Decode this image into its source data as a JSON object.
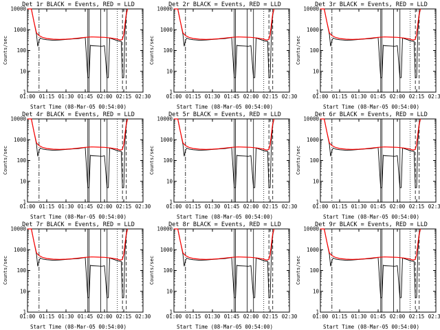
{
  "figure": {
    "x_axis_label": "Start Time (08-Mar-05 00:54:00)",
    "y_axis_label": "Counts/sec",
    "colors": {
      "events": "#000000",
      "lld": "#ff0000",
      "background": "#ffffff"
    }
  },
  "chart_data": [
    {
      "type": "line",
      "title": "Det 1r BLACK = Events, RED = LLD"
    },
    {
      "type": "line",
      "title": "Det 2r BLACK = Events, RED = LLD"
    },
    {
      "type": "line",
      "title": "Det 3r BLACK = Events, RED = LLD"
    },
    {
      "type": "line",
      "title": "Det 4r BLACK = Events, RED = LLD"
    },
    {
      "type": "line",
      "title": "Det 5r BLACK = Events, RED = LLD"
    },
    {
      "type": "line",
      "title": "Det 6r BLACK = Events, RED = LLD"
    },
    {
      "type": "line",
      "title": "Det 7r BLACK = Events, RED = LLD"
    },
    {
      "type": "line",
      "title": "Det 8r BLACK = Events, RED = LLD"
    },
    {
      "type": "line",
      "title": "Det 9r BLACK = Events, RED = LLD"
    }
  ],
  "shared": {
    "x_time_range": [
      "01:00",
      "02:30"
    ],
    "x_ticks": [
      "01:00",
      "01:15",
      "01:30",
      "01:45",
      "02:00",
      "02:15",
      "02:30"
    ],
    "y_scale": "log",
    "y_range": [
      1,
      10000
    ],
    "y_ticks": [
      "1",
      "10",
      "100",
      "1000",
      "10000"
    ],
    "series": [
      {
        "name": "Events",
        "color": "#000000",
        "x": [
          "01:00",
          "01:03",
          "01:05",
          "01:07",
          "01:08",
          "01:09",
          "01:10",
          "01:12",
          "01:15",
          "01:20",
          "01:25",
          "01:30",
          "01:35",
          "01:40",
          "01:45",
          "01:47",
          "01:48",
          "01:49",
          "01:50",
          "01:55",
          "01:58",
          "02:00",
          "02:02",
          "02:03",
          "02:04",
          "02:05",
          "02:08",
          "02:10",
          "02:12",
          "02:13",
          "02:14",
          "02:15",
          "02:16",
          "02:17",
          "02:18"
        ],
        "y": [
          10000,
          10000,
          2500,
          600,
          160,
          300,
          400,
          350,
          330,
          310,
          320,
          340,
          360,
          380,
          420,
          5,
          5,
          180,
          170,
          165,
          160,
          170,
          5,
          5,
          400,
          380,
          330,
          290,
          280,
          280,
          5,
          5,
          1000,
          5000,
          10000
        ]
      },
      {
        "name": "LLD",
        "color": "#ff0000",
        "x": [
          "01:00",
          "01:03",
          "01:05",
          "01:07",
          "01:09",
          "01:12",
          "01:15",
          "01:20",
          "01:25",
          "01:30",
          "01:35",
          "01:40",
          "01:45",
          "01:50",
          "01:55",
          "02:00",
          "02:05",
          "02:10",
          "02:12",
          "02:14",
          "02:15",
          "02:16",
          "02:17",
          "02:18"
        ],
        "y": [
          10000,
          10000,
          2500,
          700,
          520,
          420,
          380,
          350,
          340,
          350,
          370,
          400,
          430,
          450,
          440,
          430,
          400,
          350,
          320,
          340,
          600,
          2000,
          6000,
          10000
        ]
      }
    ],
    "vertical_markers": [
      {
        "time": "01:09",
        "style": "dash-dot"
      },
      {
        "time": "01:47",
        "style": "solid"
      },
      {
        "time": "01:48",
        "style": "solid"
      },
      {
        "time": "01:57",
        "style": "solid"
      },
      {
        "time": "02:02",
        "style": "solid"
      },
      {
        "time": "02:10",
        "style": "dotted"
      },
      {
        "time": "02:14",
        "style": "dashed"
      },
      {
        "time": "02:17",
        "style": "dashed"
      }
    ]
  }
}
